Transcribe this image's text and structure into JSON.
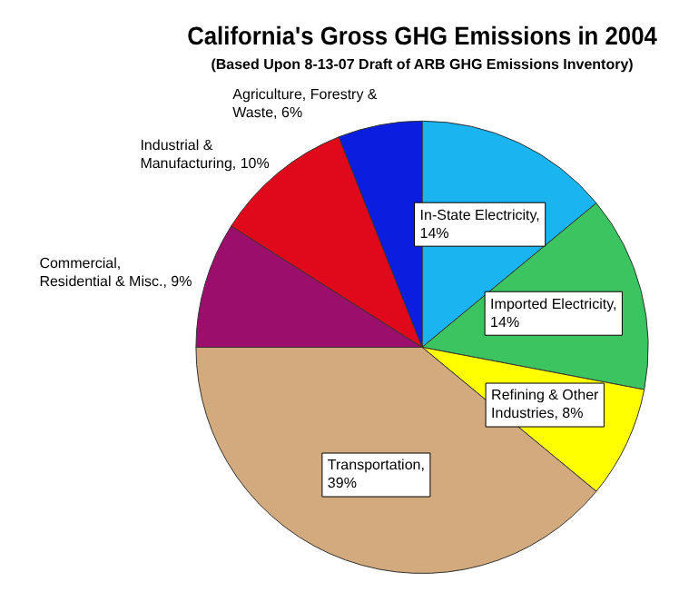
{
  "chart_data": {
    "type": "pie",
    "title": "California's Gross GHG Emissions in 2004",
    "subtitle": "(Based Upon 8-13-07 Draft of ARB GHG Emissions Inventory)",
    "categories": [
      "In-State Electricity, 14%",
      "Imported Electricity, 14%",
      "Refining & Other Industries, 8%",
      "Transportation, 39%",
      "Commercial, Residential & Misc., 9%",
      "Industrial & Manufacturing, 10%",
      "Agriculture, Forestry & Waste, 6%"
    ],
    "values": [
      14,
      14,
      8,
      39,
      9,
      10,
      6
    ],
    "colors": [
      "#1ab5f0",
      "#3cc461",
      "#ffff00",
      "#d2aa7d",
      "#9c0e6c",
      "#e0091b",
      "#0b1ee0"
    ],
    "legend": false
  }
}
